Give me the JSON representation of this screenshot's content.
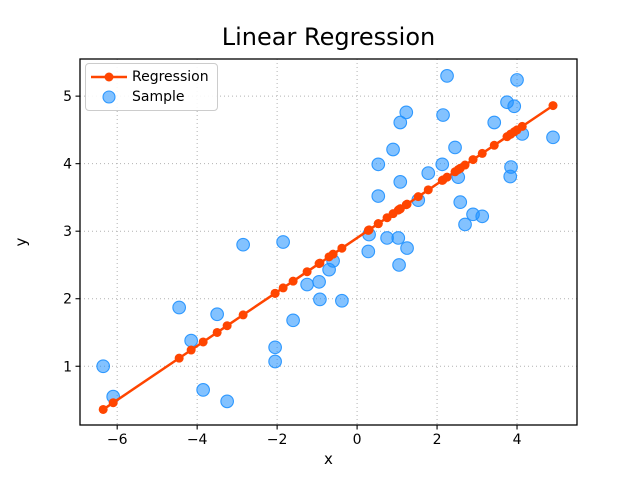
{
  "figure": {
    "title": "Linear Regression",
    "xlabel": "x",
    "ylabel": "y"
  },
  "legend": {
    "items": [
      {
        "label": "Regression",
        "handle": "line-with-marker",
        "color": "#ff4500"
      },
      {
        "label": "Sample",
        "handle": "dot",
        "color": "#1e90ff"
      }
    ]
  },
  "chart_data": {
    "type": "scatter",
    "title": "Linear Regression",
    "xlabel": "x",
    "ylabel": "y",
    "xlim": [
      -6.93,
      5.5
    ],
    "ylim": [
      0.13,
      5.55
    ],
    "xticks": [
      -6,
      -4,
      -2,
      0,
      2,
      4
    ],
    "xtick_labels": [
      "−6",
      "−4",
      "−2",
      "0",
      "2",
      "4"
    ],
    "yticks": [
      1,
      2,
      3,
      4,
      5
    ],
    "ytick_labels": [
      "1",
      "2",
      "3",
      "4",
      "5"
    ],
    "grid": true,
    "grid_style": "dotted",
    "legend_position": "upper left",
    "series": [
      {
        "name": "Sample",
        "type": "scatter",
        "color": "#1e90ff",
        "alpha": 0.6,
        "points": [
          [
            -6.35,
            1.0
          ],
          [
            -6.1,
            0.55
          ],
          [
            -4.45,
            1.87
          ],
          [
            -4.15,
            1.38
          ],
          [
            -3.85,
            0.65
          ],
          [
            -3.5,
            1.77
          ],
          [
            -3.25,
            0.48
          ],
          [
            -2.85,
            2.8
          ],
          [
            -2.05,
            1.28
          ],
          [
            -2.05,
            1.07
          ],
          [
            -1.85,
            2.84
          ],
          [
            -1.6,
            1.68
          ],
          [
            -1.25,
            2.21
          ],
          [
            -0.95,
            2.25
          ],
          [
            -0.93,
            1.99
          ],
          [
            -0.7,
            2.43
          ],
          [
            -0.6,
            2.56
          ],
          [
            -0.38,
            1.97
          ],
          [
            0.28,
            2.7
          ],
          [
            0.3,
            2.95
          ],
          [
            0.53,
            3.52
          ],
          [
            0.53,
            3.99
          ],
          [
            0.75,
            2.9
          ],
          [
            0.9,
            4.21
          ],
          [
            1.03,
            2.9
          ],
          [
            1.05,
            2.5
          ],
          [
            1.08,
            4.61
          ],
          [
            1.08,
            3.73
          ],
          [
            1.23,
            4.76
          ],
          [
            1.25,
            2.75
          ],
          [
            1.53,
            3.46
          ],
          [
            1.78,
            3.86
          ],
          [
            2.13,
            3.99
          ],
          [
            2.15,
            4.72
          ],
          [
            2.25,
            5.3
          ],
          [
            2.45,
            4.24
          ],
          [
            2.53,
            3.8
          ],
          [
            2.58,
            3.43
          ],
          [
            2.7,
            3.1
          ],
          [
            2.9,
            3.25
          ],
          [
            3.13,
            3.22
          ],
          [
            3.43,
            4.61
          ],
          [
            3.75,
            4.91
          ],
          [
            3.83,
            3.81
          ],
          [
            3.85,
            3.95
          ],
          [
            3.93,
            4.85
          ],
          [
            4.0,
            5.24
          ],
          [
            4.13,
            4.44
          ],
          [
            4.9,
            4.39
          ]
        ]
      },
      {
        "name": "Regression",
        "type": "line",
        "color": "#ff4500",
        "marker": "o",
        "slope": 0.4,
        "intercept": 2.9,
        "note": "markers plotted at every sample x value"
      }
    ],
    "style": {
      "grid_color": "#b2b2b2",
      "spine_color": "#000000",
      "sample_marker_radius": 6.3,
      "line_marker_radius": 4.5,
      "line_width": 2.5
    }
  }
}
